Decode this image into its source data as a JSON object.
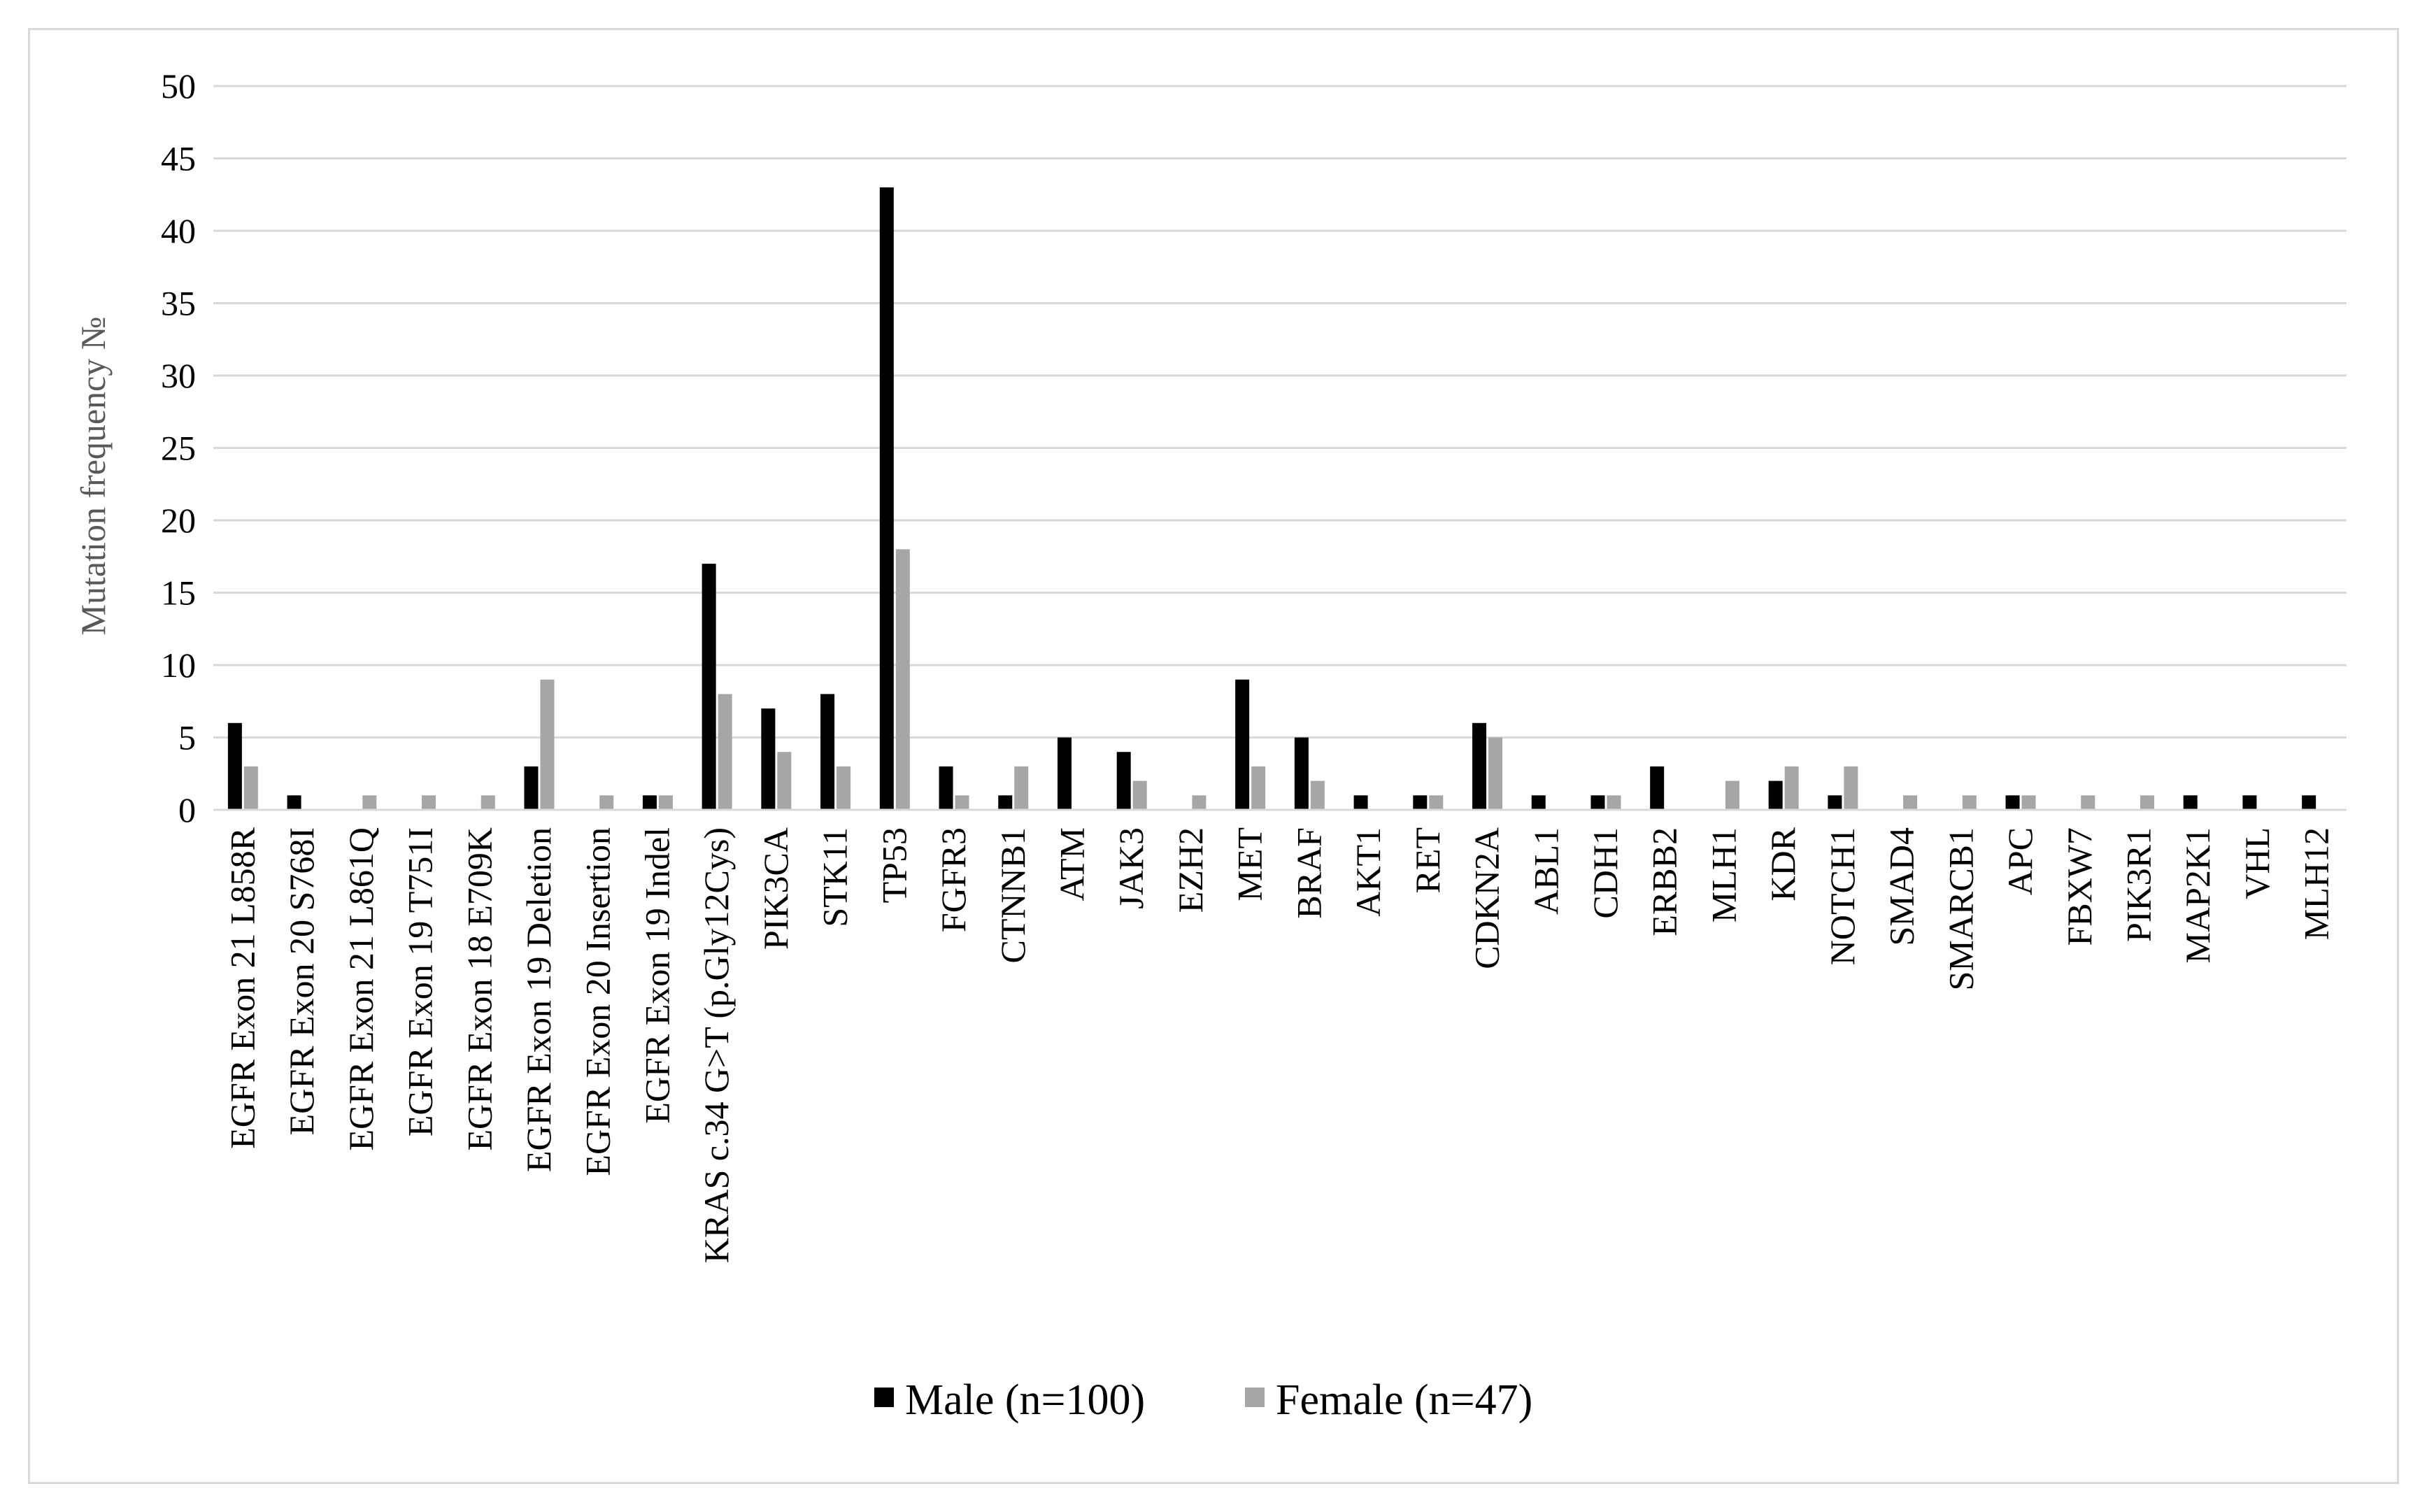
{
  "chart_data": {
    "type": "bar",
    "title": "",
    "xlabel": "",
    "ylabel": "Mutation frequency №",
    "ylim": [
      0,
      50
    ],
    "yticks": [
      0,
      5,
      10,
      15,
      20,
      25,
      30,
      35,
      40,
      45,
      50
    ],
    "grid": true,
    "legend_position": "bottom",
    "categories": [
      "EGFR Exon 21 L858R",
      "EGFR Exon 20 S768I",
      "EGFR Exon 21 L861Q",
      "EGFR Exon 19 T751I",
      "EGFR Exon 18 E709K",
      "EGFR Exon 19 Deletion",
      "EGFR Exon 20 Insertion",
      "EGFR Exon 19 Indel",
      "KRAS c.34 G>T (p.Gly12Cys)",
      "PIK3CA",
      "STK11",
      "TP53",
      "FGFR3",
      "CTNNB1",
      "ATM",
      "JAK3",
      "EZH2",
      "MET",
      "BRAF",
      "AKT1",
      "RET",
      "CDKN2A",
      "ABL1",
      "CDH1",
      "ERBB2",
      "MLH1",
      "KDR",
      "NOTCH1",
      "SMAD4",
      "SMARCB1",
      "APC",
      "FBXW7",
      "PIK3R1",
      "MAP2K1",
      "VHL",
      "MLH12"
    ],
    "series": [
      {
        "name": "Male (n=100)",
        "color": "#000000",
        "values": [
          6,
          1,
          0,
          0,
          0,
          3,
          0,
          1,
          17,
          7,
          8,
          43,
          3,
          1,
          5,
          4,
          0,
          9,
          5,
          1,
          1,
          6,
          1,
          1,
          3,
          0,
          2,
          1,
          0,
          0,
          1,
          0,
          0,
          1,
          1,
          1
        ]
      },
      {
        "name": "Female (n=47)",
        "color": "#a6a6a6",
        "values": [
          3,
          0,
          1,
          1,
          1,
          9,
          1,
          1,
          8,
          4,
          3,
          18,
          1,
          3,
          0,
          2,
          1,
          3,
          2,
          0,
          1,
          5,
          0,
          1,
          0,
          2,
          3,
          3,
          1,
          1,
          1,
          1,
          1,
          0,
          0,
          0
        ]
      }
    ]
  }
}
